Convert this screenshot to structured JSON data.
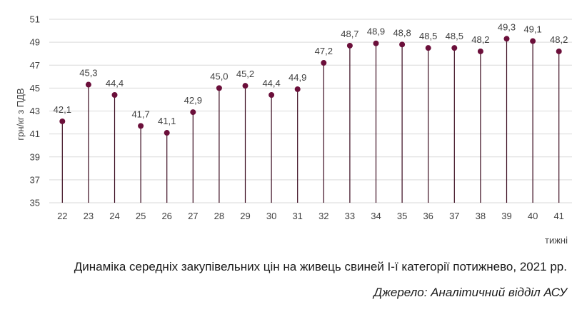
{
  "chart_data": {
    "type": "lollipop",
    "title": "Динаміка середніх закупівельних цін на живець свиней І-ї категорії потижнево, 2021 рр.",
    "source": "Джерело: Аналітичний відділ АСУ",
    "xlabel": "тижні",
    "ylabel": "грн/кг з ПДВ",
    "ylim": [
      35,
      51
    ],
    "yticks": [
      "35",
      "37",
      "39",
      "41",
      "43",
      "45",
      "47",
      "49",
      "51"
    ],
    "grid": true,
    "categories": [
      "22",
      "23",
      "24",
      "25",
      "26",
      "27",
      "28",
      "29",
      "30",
      "31",
      "32",
      "33",
      "34",
      "35",
      "36",
      "37",
      "38",
      "39",
      "40",
      "41"
    ],
    "values": [
      42.1,
      45.3,
      44.4,
      41.7,
      41.1,
      42.9,
      45.0,
      45.2,
      44.4,
      44.9,
      47.2,
      48.7,
      48.9,
      48.8,
      48.5,
      48.5,
      48.2,
      49.3,
      49.1,
      48.2
    ],
    "value_labels": [
      "42,1",
      "45,3",
      "44,4",
      "41,7",
      "41,1",
      "42,9",
      "45,0",
      "45,2",
      "44,4",
      "44,9",
      "47,2",
      "48,7",
      "48,9",
      "48,8",
      "48,5",
      "48,5",
      "48,2",
      "49,3",
      "49,1",
      "48,2"
    ],
    "marker_color": "#6b0f3a",
    "stem_color": "#3a0a1e",
    "grid_color": "#d9d9d9"
  }
}
